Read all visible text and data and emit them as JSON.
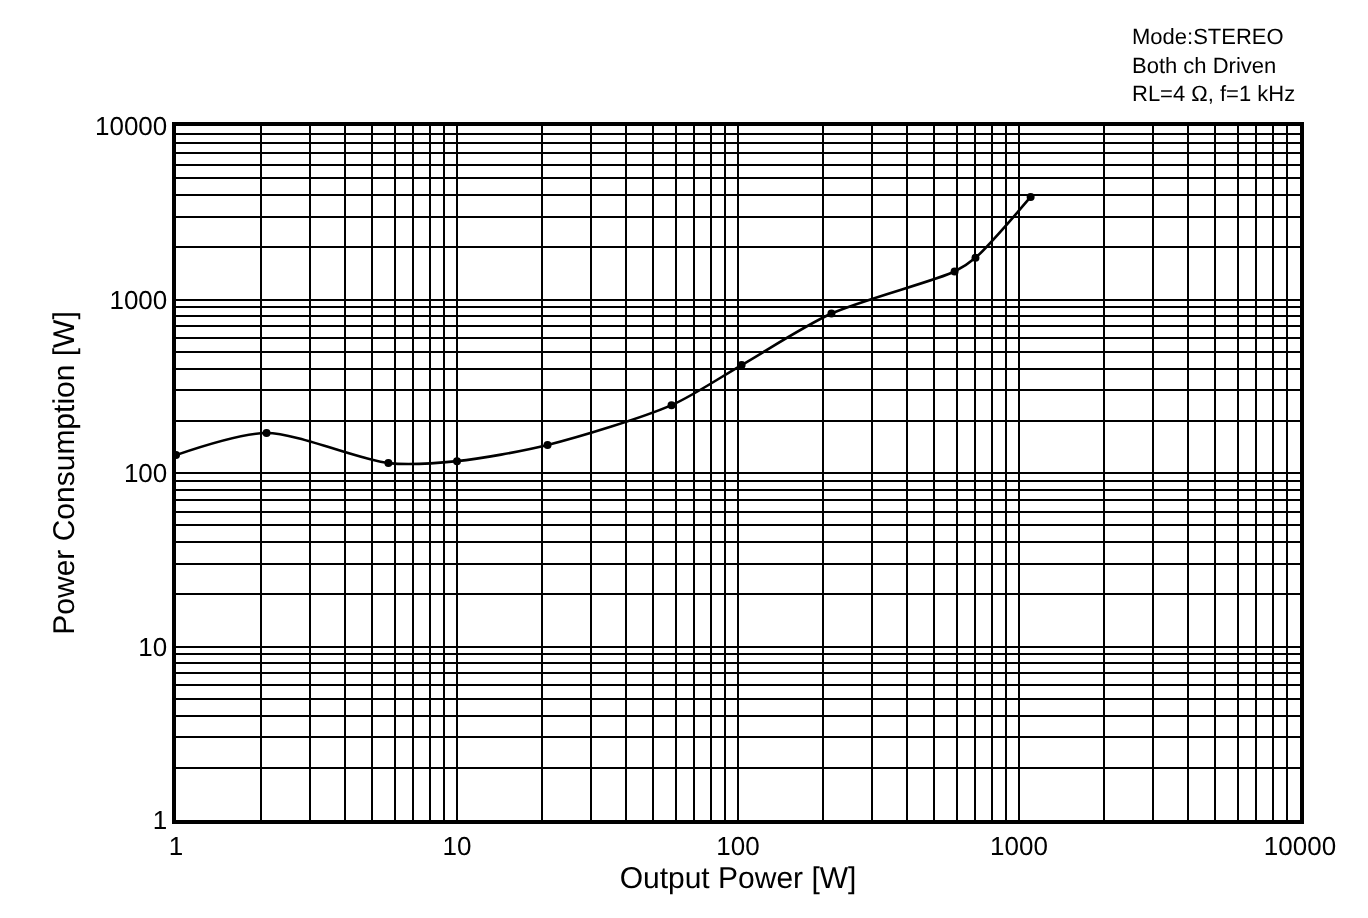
{
  "chart_data": {
    "type": "line",
    "xlabel": "Output Power [W]",
    "ylabel": "Power Consumption [W]",
    "annotations": [
      "Mode:STEREO\nBoth ch Driven\nRL=4 Ω, f=1 kHz"
    ],
    "series": [
      {
        "color": "#000000",
        "x": [
          1,
          2.1,
          5.7,
          10,
          21,
          58,
          103,
          215,
          590,
          700,
          1100
        ],
        "values": [
          127,
          170,
          114,
          117,
          145,
          246,
          419,
          830,
          1450,
          1740,
          3900
        ]
      }
    ],
    "log": "xy",
    "xlim": [
      1,
      10000
    ],
    "ylim": [
      1,
      10000
    ],
    "xticks": [
      1,
      {
        "value": 2,
        "label": null
      },
      {
        "value": 3,
        "label": null
      },
      {
        "value": 4,
        "label": null
      },
      {
        "value": 5,
        "label": null
      },
      {
        "value": 6,
        "label": null
      },
      {
        "value": 7,
        "label": null
      },
      {
        "value": 8,
        "label": null
      },
      {
        "value": 9,
        "label": null
      },
      10,
      {
        "value": 20,
        "label": null
      },
      {
        "value": 30,
        "label": null
      },
      {
        "value": 40,
        "label": null
      },
      {
        "value": 50,
        "label": null
      },
      {
        "value": 60,
        "label": null
      },
      {
        "value": 70,
        "label": null
      },
      {
        "value": 80,
        "label": null
      },
      {
        "value": 90,
        "label": null
      },
      100,
      {
        "value": 200,
        "label": null
      },
      {
        "value": 300,
        "label": null
      },
      {
        "value": 400,
        "label": null
      },
      {
        "value": 500,
        "label": null
      },
      {
        "value": 600,
        "label": null
      },
      {
        "value": 700,
        "label": null
      },
      {
        "value": 800,
        "label": null
      },
      {
        "value": 900,
        "label": null
      },
      1000,
      {
        "value": 2000,
        "label": null
      },
      {
        "value": 3000,
        "label": null
      },
      {
        "value": 4000,
        "label": null
      },
      {
        "value": 5000,
        "label": null
      },
      {
        "value": 6000,
        "label": null
      },
      {
        "value": 7000,
        "label": null
      },
      {
        "value": 8000,
        "label": null
      },
      {
        "value": 9000,
        "label": null
      },
      10000
    ],
    "yticks": [
      1,
      {
        "value": 2,
        "label": null
      },
      {
        "value": 3,
        "label": null
      },
      {
        "value": 4,
        "label": null
      },
      {
        "value": 5,
        "label": null
      },
      {
        "value": 6,
        "label": null
      },
      {
        "value": 7,
        "label": null
      },
      {
        "value": 8,
        "label": null
      },
      {
        "value": 9,
        "label": null
      },
      10,
      {
        "value": 20,
        "label": null
      },
      {
        "value": 30,
        "label": null
      },
      {
        "value": 40,
        "label": null
      },
      {
        "value": 50,
        "label": null
      },
      {
        "value": 60,
        "label": null
      },
      {
        "value": 70,
        "label": null
      },
      {
        "value": 80,
        "label": null
      },
      {
        "value": 90,
        "label": null
      },
      100,
      {
        "value": 200,
        "label": null
      },
      {
        "value": 300,
        "label": null
      },
      {
        "value": 400,
        "label": null
      },
      {
        "value": 500,
        "label": null
      },
      {
        "value": 600,
        "label": null
      },
      {
        "value": 700,
        "label": null
      },
      {
        "value": 800,
        "label": null
      },
      {
        "value": 900,
        "label": null
      },
      1000,
      {
        "value": 2000,
        "label": null
      },
      {
        "value": 3000,
        "label": null
      },
      {
        "value": 4000,
        "label": null
      },
      {
        "value": 5000,
        "label": null
      },
      {
        "value": 6000,
        "label": null
      },
      {
        "value": 7000,
        "label": null
      },
      {
        "value": 8000,
        "label": null
      },
      {
        "value": 9000,
        "label": null
      },
      10000
    ],
    "grid": true,
    "marker": "circle",
    "line_style": "solid"
  }
}
